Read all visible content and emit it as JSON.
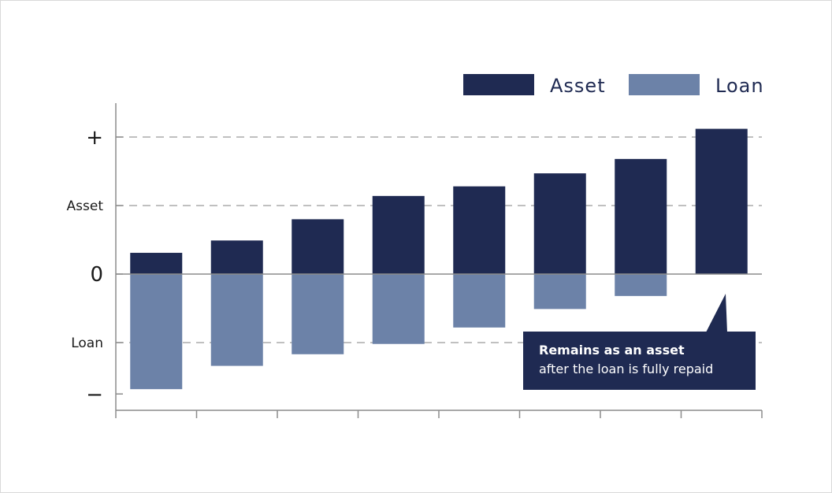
{
  "chart_data": {
    "type": "bar",
    "stacking": "diverging",
    "categories": [
      "",
      "",
      "",
      "",
      "",
      "",
      "",
      ""
    ],
    "series": [
      {
        "name": "Asset",
        "color": "#1f2a52",
        "values": [
          0.31,
          0.49,
          0.8,
          1.14,
          1.28,
          1.47,
          1.68,
          2.12
        ]
      },
      {
        "name": "Loan",
        "color": "#6c82a8",
        "values": [
          -1.68,
          -1.34,
          -1.17,
          -1.02,
          -0.78,
          -0.51,
          -0.32,
          0
        ]
      }
    ],
    "ylim": [
      -2.0,
      2.5
    ],
    "y_ticks": [
      {
        "value": 2.0,
        "label": "+"
      },
      {
        "value": 1.0,
        "label": "Asset"
      },
      {
        "value": 0,
        "label": "0"
      },
      {
        "value": -1.0,
        "label": "Loan"
      },
      {
        "value": -1.75,
        "label": "−"
      }
    ],
    "grid_dashed_at": [
      2.0,
      1.0,
      -1.0
    ],
    "legend_position": "top-right",
    "annotation": {
      "title": "Remains as an asset",
      "body": "after the loan is fully repaid",
      "target_category_index": 7
    }
  }
}
